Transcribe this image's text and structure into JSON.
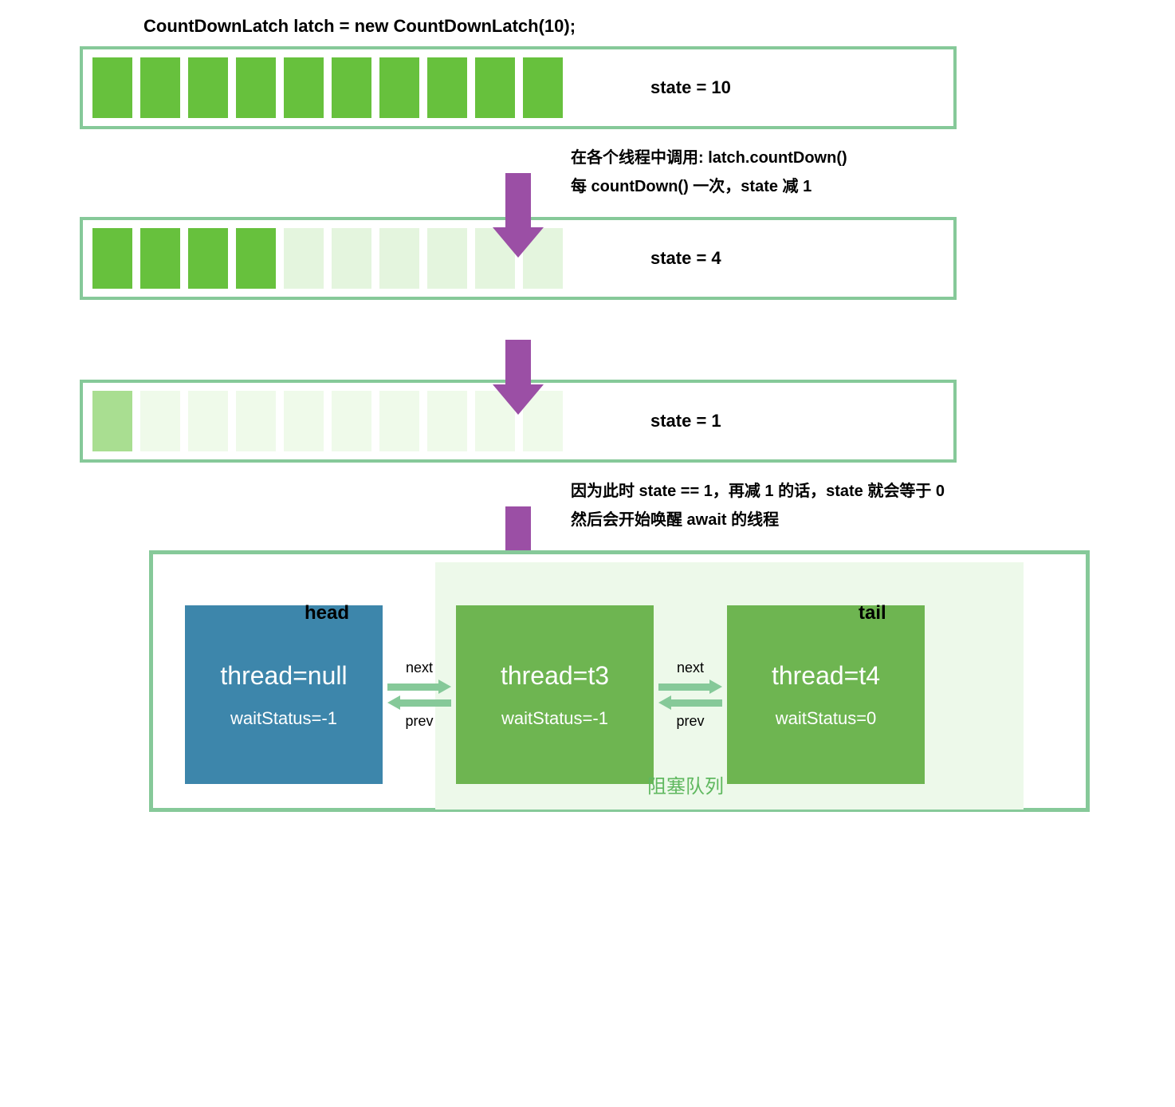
{
  "code_line": "CountDownLatch latch = new CountDownLatch(10);",
  "states": [
    {
      "label": "state = 10",
      "bars": [
        {
          "color": "#67c13d"
        },
        {
          "color": "#67c13d"
        },
        {
          "color": "#67c13d"
        },
        {
          "color": "#67c13d"
        },
        {
          "color": "#67c13d"
        },
        {
          "color": "#67c13d"
        },
        {
          "color": "#67c13d"
        },
        {
          "color": "#67c13d"
        },
        {
          "color": "#67c13d"
        },
        {
          "color": "#67c13d"
        }
      ]
    },
    {
      "label": "state = 4",
      "bars": [
        {
          "color": "#67c13d"
        },
        {
          "color": "#67c13d"
        },
        {
          "color": "#67c13d"
        },
        {
          "color": "#67c13d"
        },
        {
          "color": "#e4f5de"
        },
        {
          "color": "#e4f5de"
        },
        {
          "color": "#e4f5de"
        },
        {
          "color": "#e4f5de"
        },
        {
          "color": "#e4f5de"
        },
        {
          "color": "#e4f5de"
        }
      ]
    },
    {
      "label": "state = 1",
      "bars": [
        {
          "color": "#a9de91"
        },
        {
          "color": "#effaea"
        },
        {
          "color": "#effaea"
        },
        {
          "color": "#effaea"
        },
        {
          "color": "#effaea"
        },
        {
          "color": "#effaea"
        },
        {
          "color": "#effaea"
        },
        {
          "color": "#effaea"
        },
        {
          "color": "#effaea"
        },
        {
          "color": "#effaea"
        }
      ]
    }
  ],
  "arrows": [
    {
      "line1": "在各个线程中调用: latch.countDown()",
      "line2": "每 countDown() 一次，state 减 1"
    },
    {
      "line1": "",
      "line2": ""
    },
    {
      "line1": "因为此时 state == 1，再减 1 的话，state 就会等于 0",
      "line2": "然后会开始唤醒 await 的线程"
    }
  ],
  "arrow_color": "#9b4fa5",
  "border_color": "#86c999",
  "queue": {
    "head_label": "head",
    "tail_label": "tail",
    "blocking_label": "阻塞队列",
    "blocking_bg_color": "#edf9ea",
    "link_labels": {
      "next": "next",
      "prev": "prev"
    },
    "link_arrow_color": "#86c999",
    "nodes": [
      {
        "thread": "thread=null",
        "wait": "waitStatus=-1",
        "bg": "#3d86ab"
      },
      {
        "thread": "thread=t3",
        "wait": "waitStatus=-1",
        "bg": "#6eb551"
      },
      {
        "thread": "thread=t4",
        "wait": "waitStatus=0",
        "bg": "#6eb551"
      }
    ]
  }
}
